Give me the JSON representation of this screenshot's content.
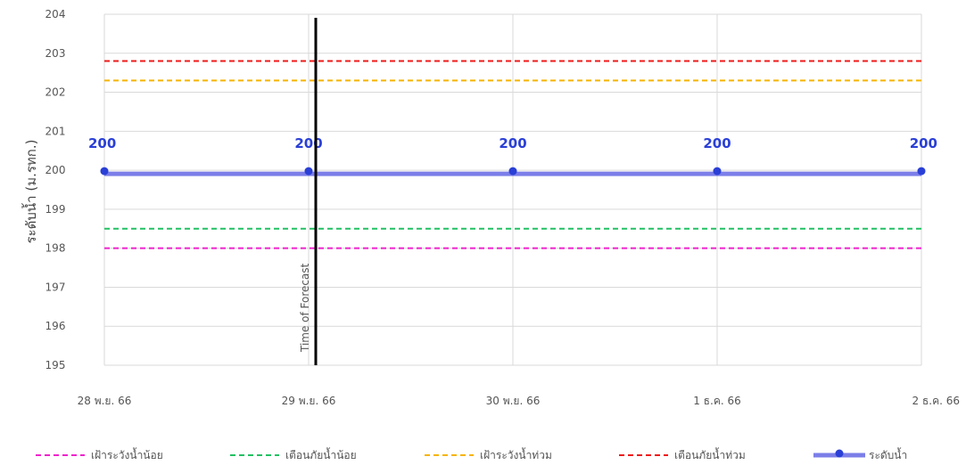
{
  "chart_data": {
    "type": "line",
    "x": [
      "28 พ.ย. 66",
      "29 พ.ย. 66",
      "30 พ.ย. 66",
      "1 ธ.ค. 66",
      "2 ธ.ค. 66"
    ],
    "ylabel": "ระดับน้ำ (ม.รทก.)",
    "ylim": [
      195,
      204
    ],
    "yticks": [
      195,
      196,
      197,
      198,
      199,
      200,
      201,
      202,
      203,
      204
    ],
    "grid": true,
    "legend_position": "bottom",
    "vertical_marker": {
      "x": "29 พ.ย. 66",
      "label": "Time of Forecast"
    },
    "reference_lines": [
      {
        "name": "เฝ้าระวังน้ำน้อย",
        "value": 198.0,
        "color": "#ee22cc",
        "dash": true
      },
      {
        "name": "เตือนภัยน้ำน้อย",
        "value": 198.5,
        "color": "#22c063",
        "dash": true
      },
      {
        "name": "เฝ้าระวังน้ำท่วม",
        "value": 202.3,
        "color": "#f5b400",
        "dash": true
      },
      {
        "name": "เตือนภัยน้ำท่วม",
        "value": 202.8,
        "color": "#ee1a1a",
        "dash": true
      }
    ],
    "series": [
      {
        "name": "ระดับน้ำ",
        "values": [
          200,
          200,
          200,
          200,
          200
        ],
        "color": "#7b7ee8",
        "marker_color": "#2a3fd6",
        "data_labels": [
          "200",
          "200",
          "200",
          "200",
          "200"
        ]
      }
    ]
  }
}
